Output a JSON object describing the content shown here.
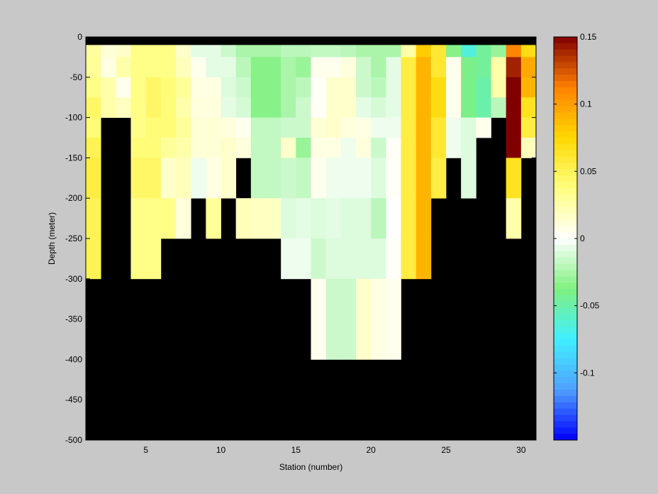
{
  "chart_data": {
    "type": "heatmap",
    "xlabel": "Station (number)",
    "ylabel": "Depth (meter)",
    "xlim": [
      1,
      31
    ],
    "ylim": [
      -500,
      0
    ],
    "x_ticks": [
      5,
      10,
      15,
      20,
      25,
      30
    ],
    "y_ticks": [
      0,
      -50,
      -100,
      -150,
      -200,
      -250,
      -300,
      -350,
      -400,
      -450,
      -500
    ],
    "colorbar": {
      "range": [
        -0.15,
        0.15
      ],
      "ticks": [
        0.15,
        0.1,
        0.05,
        0,
        -0.05,
        -0.1
      ],
      "colors": [
        "#0000ff",
        "#50a0ff",
        "#40f0ff",
        "#80f080",
        "#ffffff",
        "#ffff80",
        "#ffd800",
        "#ff8000",
        "#800000"
      ]
    },
    "background_color": "#000000",
    "station_centers": [
      1.5,
      2.5,
      3.5,
      4.5,
      5.5,
      6.5,
      7.5,
      8.5,
      9.5,
      10.5,
      11.5,
      12.5,
      13.5,
      14.5,
      15.5,
      16.5,
      17.5,
      18.5,
      19.5,
      20.5,
      21.5,
      22.5,
      23.5,
      24.5,
      25.5,
      26.5,
      27.5,
      28.5,
      29.5,
      30.5
    ],
    "depth_bins": [
      [
        0,
        -10
      ],
      [
        -10,
        -25
      ],
      [
        -25,
        -50
      ],
      [
        -50,
        -75
      ],
      [
        -75,
        -100
      ],
      [
        -100,
        -125
      ],
      [
        -125,
        -150
      ],
      [
        -150,
        -200
      ],
      [
        -200,
        -250
      ],
      [
        -250,
        -300
      ],
      [
        -300,
        -400
      ]
    ],
    "values": [
      [
        null,
        0.028,
        0.03,
        0.035,
        0.045,
        0.04,
        0.05,
        0.055,
        0.05,
        0.05,
        null
      ],
      [
        null,
        0.012,
        0.008,
        0.025,
        0.025,
        null,
        null,
        null,
        null,
        null,
        null
      ],
      [
        null,
        0.015,
        0.025,
        0.005,
        0.018,
        null,
        null,
        null,
        null,
        null,
        null
      ],
      [
        null,
        0.035,
        0.035,
        0.035,
        0.035,
        0.035,
        0.04,
        0.045,
        0.035,
        0.035,
        null
      ],
      [
        null,
        0.035,
        0.035,
        0.045,
        0.045,
        0.04,
        0.04,
        0.045,
        0.035,
        0.035,
        null
      ],
      [
        null,
        0.035,
        0.035,
        0.04,
        0.04,
        0.04,
        0.03,
        0.015,
        0.035,
        null,
        null
      ],
      [
        null,
        0.015,
        0.02,
        0.03,
        0.025,
        0.03,
        0.025,
        0.02,
        0.01,
        null,
        null
      ],
      [
        null,
        -0.008,
        0.005,
        0.008,
        0.01,
        0.012,
        0.012,
        -0.005,
        null,
        null,
        null
      ],
      [
        null,
        -0.008,
        -0.008,
        0.008,
        0.01,
        0.012,
        0.012,
        0.008,
        0.03,
        null,
        null
      ],
      [
        null,
        -0.015,
        -0.008,
        -0.01,
        -0.008,
        0.01,
        0.015,
        0.015,
        null,
        null,
        null
      ],
      [
        null,
        -0.025,
        -0.02,
        -0.015,
        -0.012,
        0.005,
        0.01,
        null,
        0.02,
        null,
        null
      ],
      [
        null,
        -0.025,
        -0.035,
        -0.035,
        -0.035,
        -0.018,
        -0.018,
        -0.018,
        0.018,
        null,
        null
      ],
      [
        null,
        -0.025,
        -0.035,
        -0.035,
        -0.035,
        -0.018,
        -0.018,
        -0.018,
        0.018,
        null,
        null
      ],
      [
        null,
        -0.02,
        -0.025,
        -0.025,
        -0.025,
        -0.015,
        0.015,
        -0.015,
        -0.01,
        -0.005,
        null
      ],
      [
        null,
        -0.02,
        -0.03,
        -0.02,
        -0.015,
        -0.015,
        -0.03,
        -0.018,
        -0.008,
        -0.005,
        null
      ],
      [
        null,
        -0.018,
        0.005,
        0.002,
        0.002,
        0.012,
        0.008,
        0.005,
        -0.01,
        -0.015,
        0.005
      ],
      [
        null,
        -0.018,
        0.005,
        0.015,
        0.015,
        0.015,
        0.008,
        -0.005,
        -0.008,
        -0.01,
        -0.015
      ],
      [
        null,
        -0.02,
        0.01,
        0.015,
        0.015,
        0.01,
        -0.005,
        -0.005,
        -0.01,
        -0.01,
        -0.015
      ],
      [
        null,
        -0.025,
        -0.015,
        -0.015,
        -0.008,
        0.008,
        0.01,
        -0.005,
        -0.01,
        -0.01,
        0.015
      ],
      [
        null,
        -0.025,
        -0.025,
        -0.02,
        -0.012,
        -0.005,
        -0.015,
        -0.01,
        -0.02,
        -0.01,
        0.008
      ],
      [
        null,
        -0.025,
        -0.008,
        -0.008,
        -0.008,
        -0.005,
        0.002,
        0.002,
        0.0,
        0.002,
        0.005
      ],
      [
        null,
        0.025,
        0.055,
        0.055,
        0.055,
        0.055,
        0.055,
        0.055,
        0.055,
        0.055,
        null
      ],
      [
        null,
        0.08,
        0.09,
        0.09,
        0.09,
        0.09,
        0.09,
        0.09,
        0.09,
        0.09,
        null
      ],
      [
        null,
        0.06,
        0.06,
        0.07,
        0.07,
        0.06,
        0.06,
        0.055,
        null,
        null,
        null
      ],
      [
        null,
        -0.035,
        0.005,
        0.005,
        0.005,
        -0.005,
        -0.005,
        null,
        null,
        null,
        null
      ],
      [
        null,
        -0.065,
        -0.04,
        -0.04,
        -0.04,
        -0.01,
        -0.01,
        -0.01,
        null,
        null,
        null
      ],
      [
        null,
        -0.045,
        -0.045,
        -0.05,
        -0.05,
        0.005,
        null,
        null,
        null,
        null,
        null
      ],
      [
        null,
        -0.03,
        0.025,
        0.025,
        -0.02,
        null,
        null,
        null,
        null,
        null,
        null
      ],
      [
        null,
        0.11,
        0.14,
        0.15,
        0.15,
        0.15,
        0.15,
        0.065,
        0.025,
        null,
        null
      ],
      [
        null,
        0.07,
        0.095,
        0.09,
        0.065,
        0.055,
        0.02,
        null,
        null,
        null,
        null
      ],
      [
        null,
        0.045,
        0.04,
        0.04,
        0.04,
        0.04,
        null,
        null,
        null,
        null,
        null
      ]
    ]
  }
}
